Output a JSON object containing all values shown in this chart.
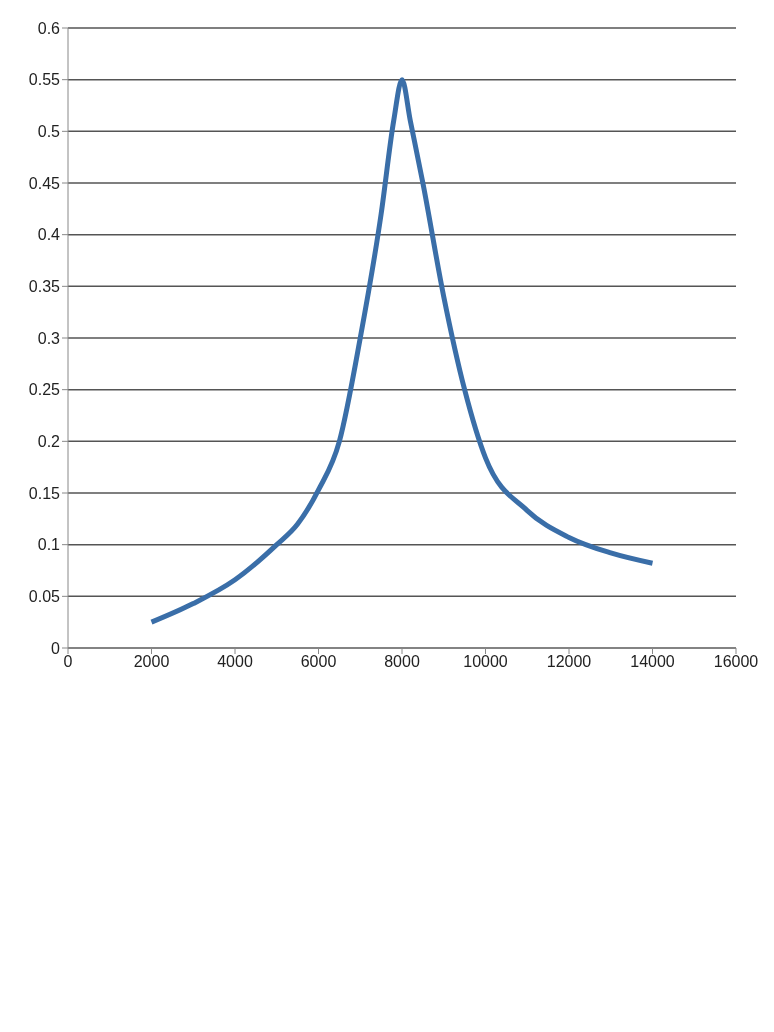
{
  "chart_data": {
    "type": "line",
    "x": [
      2000,
      3000,
      4000,
      5000,
      5500,
      6000,
      6500,
      7000,
      7500,
      7800,
      8000,
      8200,
      8500,
      9000,
      9500,
      10000,
      11000,
      12000,
      13000,
      14000
    ],
    "series": [
      {
        "color": "#3a6ea8",
        "values": [
          0.025,
          0.043,
          0.066,
          0.1,
          0.12,
          0.153,
          0.2,
          0.3,
          0.42,
          0.51,
          0.55,
          0.51,
          0.45,
          0.34,
          0.25,
          0.184,
          0.133,
          0.107,
          0.092,
          0.082
        ]
      }
    ],
    "xlim": [
      0,
      16000
    ],
    "xticks": [
      0,
      2000,
      4000,
      6000,
      8000,
      10000,
      12000,
      14000,
      16000
    ],
    "ylim": [
      0,
      0.6
    ],
    "yticks": [
      0,
      0.05,
      0.1,
      0.15,
      0.2,
      0.25,
      0.3,
      0.35,
      0.4,
      0.45,
      0.5,
      0.55,
      0.6
    ],
    "grid": "y",
    "legend": false,
    "marker": "none",
    "line_style": "solid"
  }
}
